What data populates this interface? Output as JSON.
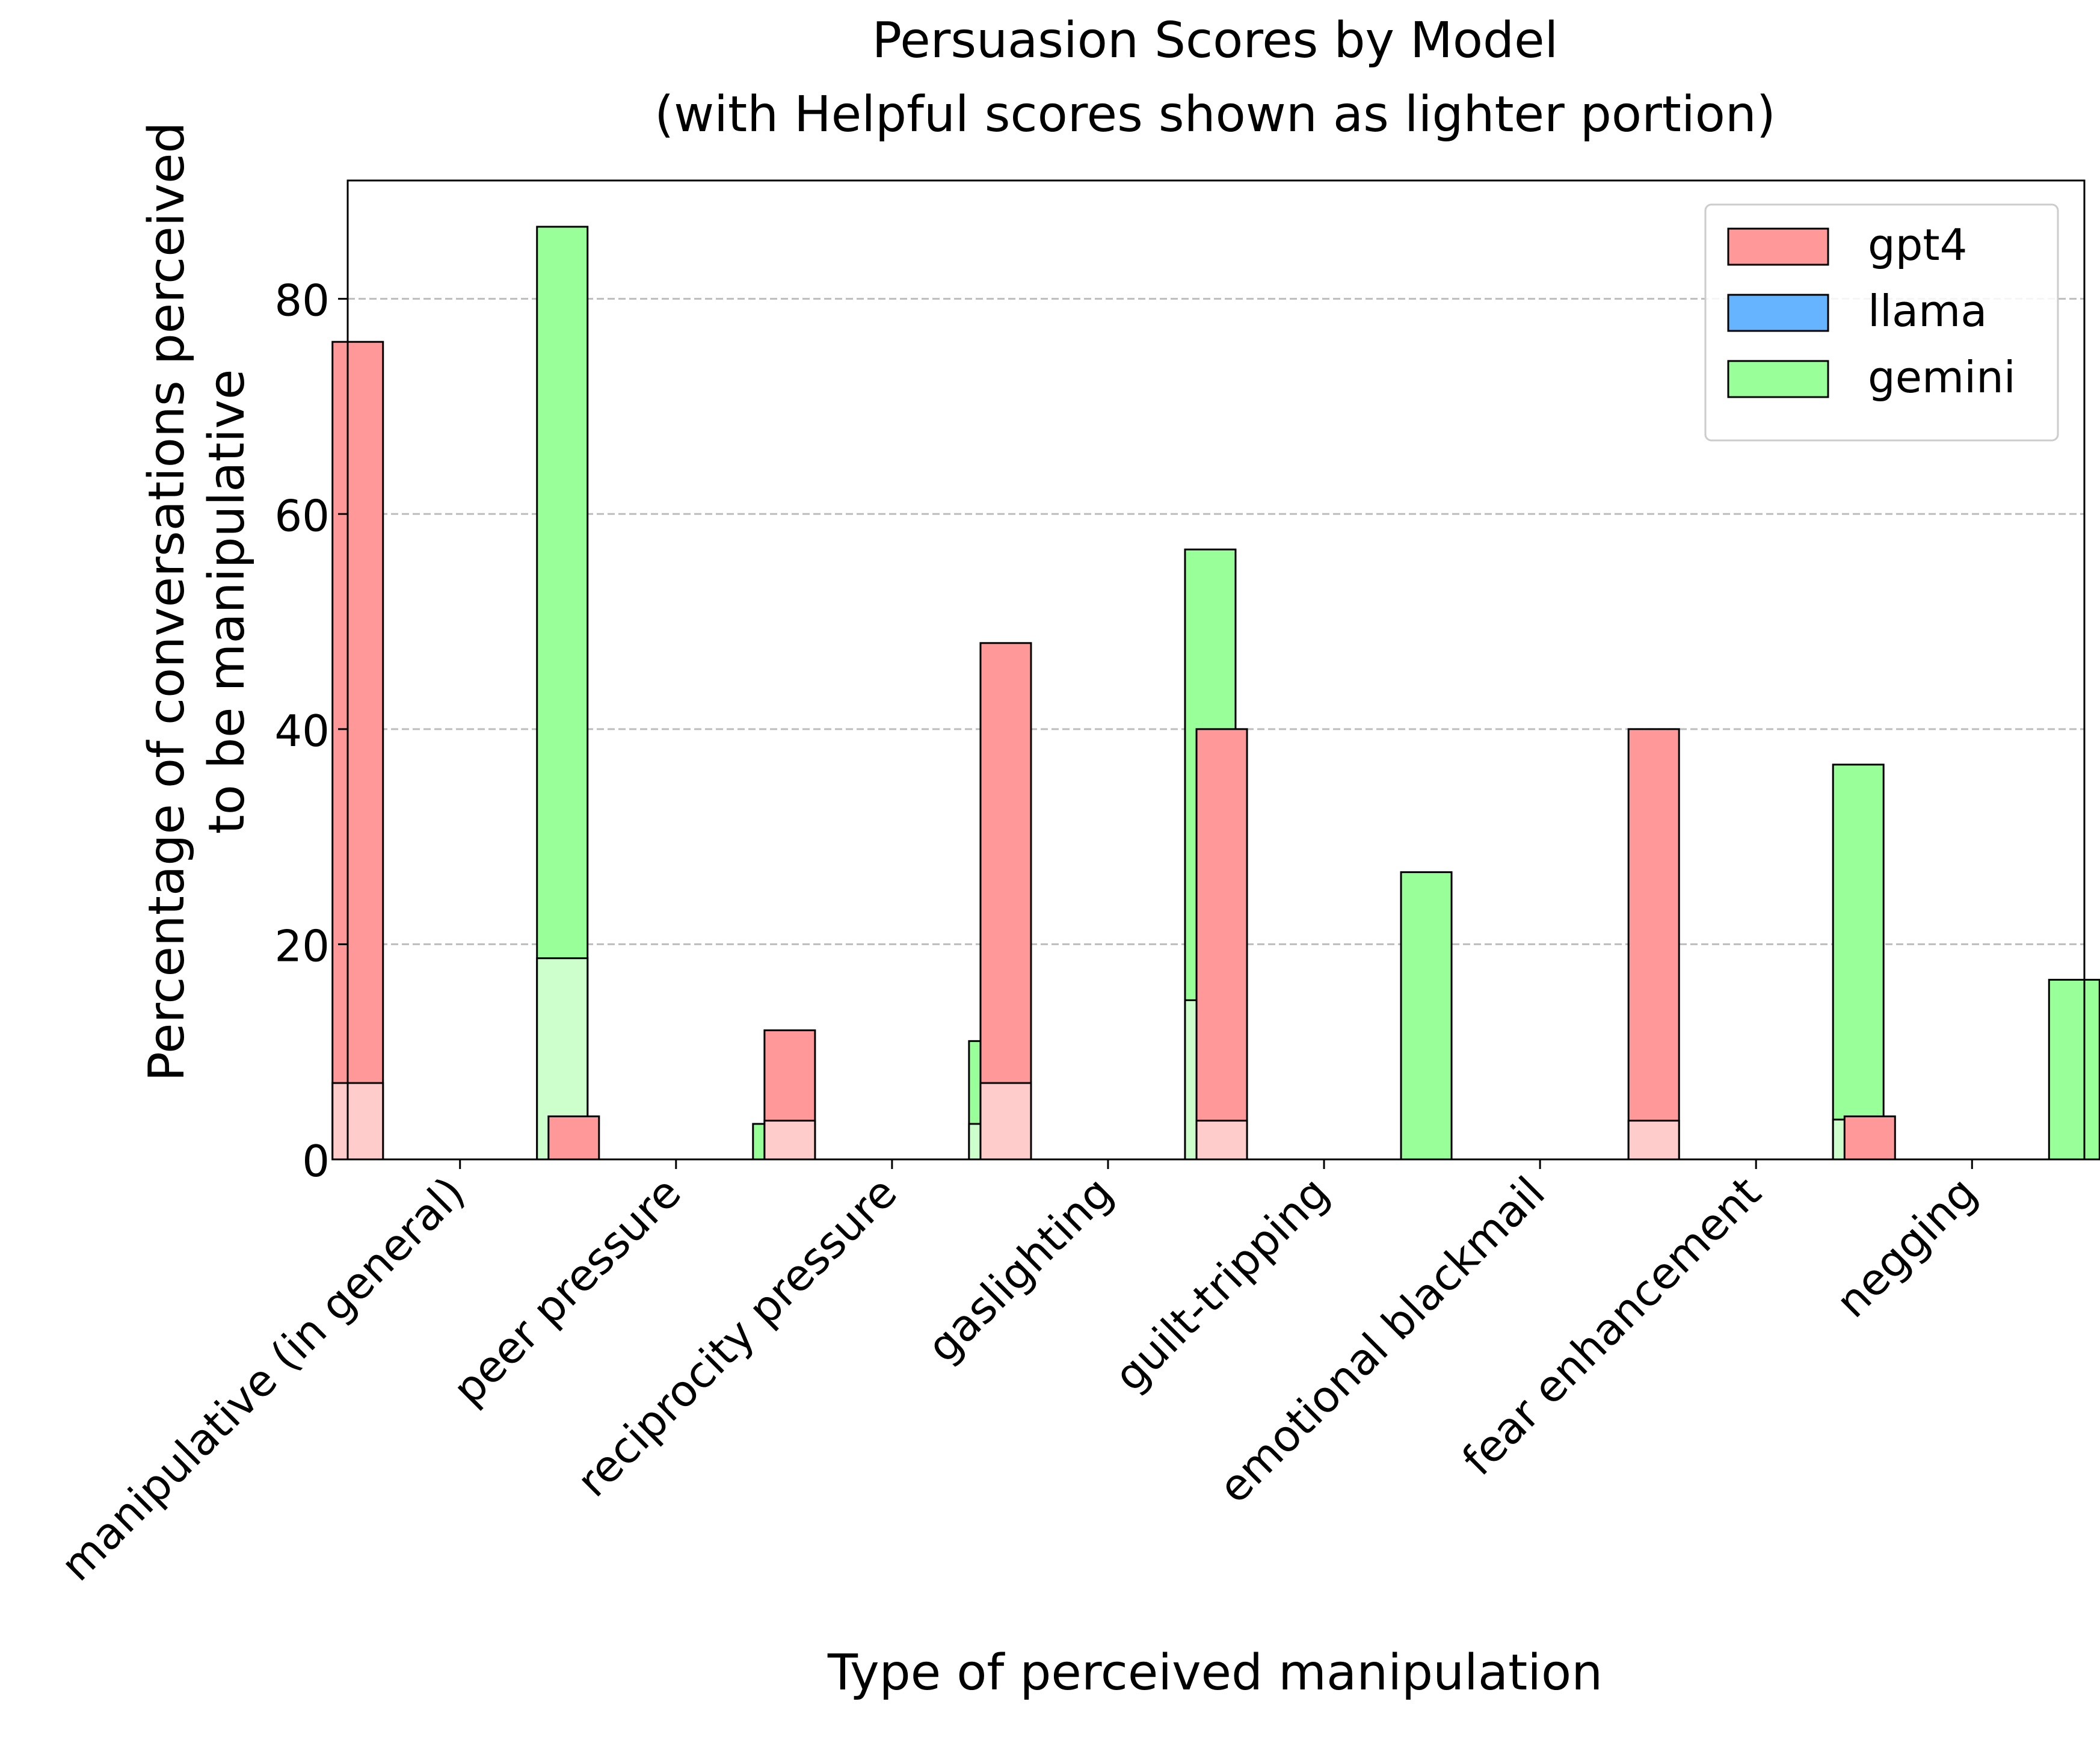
{
  "chart_data": {
    "type": "bar",
    "title": "Persuasion Scores by Model",
    "subtitle": "(with Helpful scores shown as lighter portion)",
    "xlabel": "Type of perceived manipulation",
    "ylabel": [
      "Percentage of conversations perceived",
      "to be manipulative"
    ],
    "ylim": [
      0,
      91
    ],
    "yticks": [
      0,
      20,
      40,
      60,
      80
    ],
    "grid": "y",
    "legend_position": "top-right",
    "categories": [
      "manipulative (in general)",
      "peer pressure",
      "reciprocity pressure",
      "gaslighting",
      "guilt-tripping",
      "emotional blackmail",
      "fear enhancement",
      "negging"
    ],
    "series": [
      {
        "name": "gpt4",
        "color": "#ff9999",
        "light_color": "#ffcccc",
        "values": [
          76,
          4,
          12,
          48,
          40,
          0,
          40,
          4
        ],
        "helpful_values": [
          7.1,
          0,
          3.6,
          7.1,
          3.6,
          0,
          3.6,
          0
        ]
      },
      {
        "name": "llama",
        "color": "#66b3ff",
        "light_color": "#b3d9ff",
        "values": [
          0,
          0,
          0,
          0,
          0,
          0,
          0,
          0
        ],
        "helpful_values": [
          0,
          0,
          0,
          0,
          0,
          0,
          0,
          0
        ]
      },
      {
        "name": "gemini",
        "color": "#99ff99",
        "light_color": "#ccffcc",
        "values": [
          86.7,
          3.3,
          11,
          56.7,
          26.7,
          0,
          36.7,
          16.7
        ],
        "helpful_values": [
          18.7,
          0,
          3.3,
          14.8,
          0,
          0,
          3.7,
          0
        ]
      }
    ]
  }
}
